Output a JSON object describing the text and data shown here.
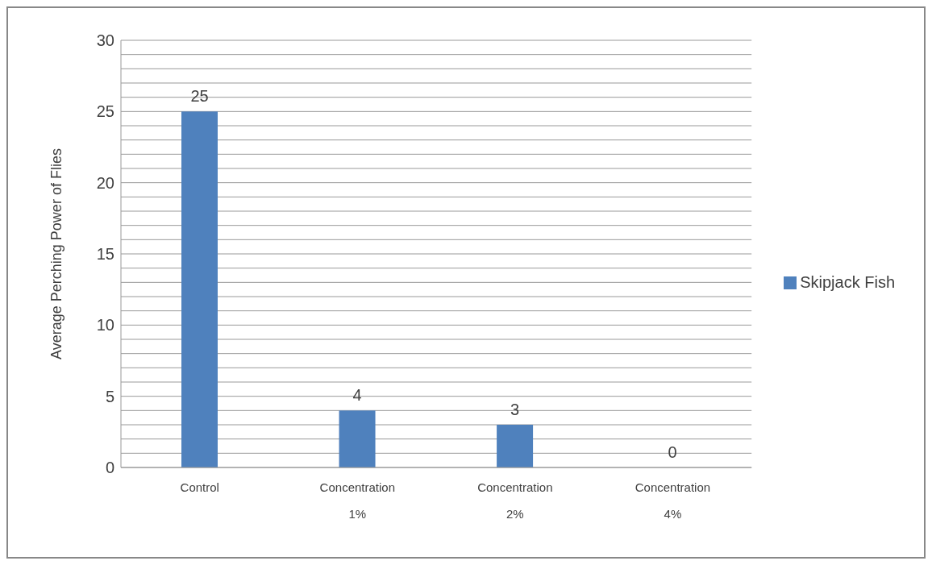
{
  "chart_data": {
    "type": "bar",
    "ylabel": "Average Perching Power of Flies",
    "categories": [
      "Control",
      "Concentration 1%",
      "Concentration 2%",
      "Concentration 4%"
    ],
    "series": [
      {
        "name": "Skipjack Fish",
        "color": "#4f81bd",
        "values": [
          25,
          4,
          3,
          0
        ]
      }
    ],
    "ylim": [
      0,
      30
    ],
    "yticks": [
      0,
      {
        "value": 1,
        "label": null
      },
      {
        "value": 2,
        "label": null
      },
      {
        "value": 3,
        "label": null
      },
      {
        "value": 4,
        "label": null
      },
      5,
      {
        "value": 6,
        "label": null
      },
      {
        "value": 7,
        "label": null
      },
      {
        "value": 8,
        "label": null
      },
      {
        "value": 9,
        "label": null
      },
      10,
      {
        "value": 11,
        "label": null
      },
      {
        "value": 12,
        "label": null
      },
      {
        "value": 13,
        "label": null
      },
      {
        "value": 14,
        "label": null
      },
      15,
      {
        "value": 16,
        "label": null
      },
      {
        "value": 17,
        "label": null
      },
      {
        "value": 18,
        "label": null
      },
      {
        "value": 19,
        "label": null
      },
      20,
      {
        "value": 21,
        "label": null
      },
      {
        "value": 22,
        "label": null
      },
      {
        "value": 23,
        "label": null
      },
      {
        "value": 24,
        "label": null
      },
      25,
      {
        "value": 26,
        "label": null
      },
      {
        "value": 27,
        "label": null
      },
      {
        "value": 28,
        "label": null
      },
      {
        "value": 29,
        "label": null
      },
      30
    ],
    "grid": "y",
    "legend": "right",
    "data_labels": true
  }
}
